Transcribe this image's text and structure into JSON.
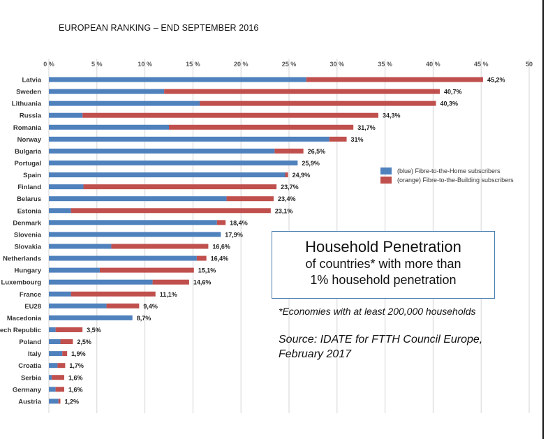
{
  "title": "EUROPEAN RANKING – END SEPTEMBER 2016",
  "info_box": {
    "title": "Household Penetration",
    "line1": "of countries* with more than",
    "line2": "1% household penetration"
  },
  "note": "*Economies with at least 200,000 households",
  "source_line1": "Source: IDATE for FTTH Council Europe,",
  "source_line2": "February 2017",
  "colors": {
    "ftth": "#4f81bd",
    "fttb": "#c0504d"
  },
  "chart_data": {
    "type": "bar",
    "orientation": "horizontal",
    "stacked": true,
    "title": "EUROPEAN RANKING – END SEPTEMBER 2016",
    "xlim": [
      0,
      50
    ],
    "x_ticks": [
      "0 %",
      "5 %",
      "10 %",
      "15 %",
      "20 %",
      "25 %",
      "30 %",
      "35 %",
      "40 %",
      "45 %",
      "50"
    ],
    "grid": true,
    "legend_position": "right",
    "categories": [
      "Latvia",
      "Sweden",
      "Lithuania",
      "Russia",
      "Romania",
      "Norway",
      "Bulgaria",
      "Portugal",
      "Spain",
      "Finland",
      "Belarus",
      "Estonia",
      "Denmark",
      "Slovenia",
      "Slovakia",
      "Netherlands",
      "Hungary",
      "Luxembourg",
      "France",
      "EU28",
      "Macedonia",
      "ech Republic",
      "Poland",
      "Italy",
      "Croatia",
      "Serbia",
      "Germany",
      "Austria"
    ],
    "series": [
      {
        "name": "(blue) Fibre-to-the-Home subscribers",
        "values": [
          26.8,
          12.0,
          15.7,
          3.5,
          12.5,
          29.2,
          23.5,
          25.9,
          24.6,
          3.6,
          18.5,
          2.3,
          17.5,
          17.9,
          6.5,
          15.4,
          5.3,
          10.8,
          2.3,
          6.0,
          8.7,
          0.7,
          1.2,
          1.4,
          0.9,
          0.3,
          0.7,
          1.0
        ]
      },
      {
        "name": "(orange) Fibre-to-the-Building subscribers",
        "values": [
          18.4,
          28.7,
          24.6,
          30.8,
          19.2,
          1.8,
          3.0,
          0.0,
          0.3,
          20.1,
          4.9,
          20.8,
          0.9,
          0.0,
          10.1,
          1.0,
          9.8,
          3.8,
          8.8,
          3.4,
          0.0,
          2.8,
          1.3,
          0.5,
          0.8,
          1.3,
          0.9,
          0.2
        ]
      }
    ],
    "totals_labels": [
      "45,2%",
      "40,7%",
      "40,3%",
      "34,3%",
      "31,7%",
      "31%",
      "26,5%",
      "25,9%",
      "24,9%",
      "23,7%",
      "23,4%",
      "23,1%",
      "18,4%",
      "17,9%",
      "16,6%",
      "16,4%",
      "15,1%",
      "14,6%",
      "11,1%",
      "9,4%",
      "8,7%",
      "3,5%",
      "2,5%",
      "1,9%",
      "1,7%",
      "1,6%",
      "1,6%",
      "1,2%"
    ]
  }
}
